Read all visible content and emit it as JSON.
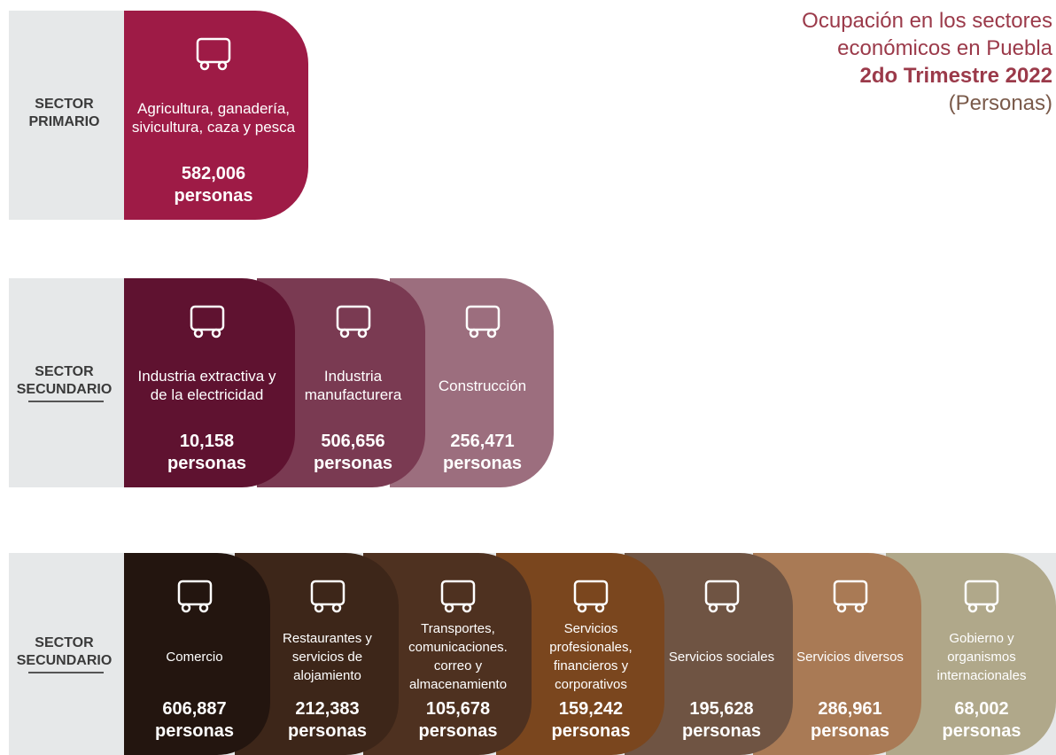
{
  "title": {
    "lines": [
      "Ocupación en los sectores",
      "económicos en Puebla",
      "2do Trimestre 2022",
      "(Personas)"
    ]
  },
  "sectors": [
    {
      "label": "SECTOR PRIMARIO",
      "items": [
        {
          "name": "Agricultura, ganadería, sivicultura, caza y pesca",
          "value": "582,006",
          "unit": "personas"
        }
      ]
    },
    {
      "label": "SECTOR SECUNDARIO",
      "items": [
        {
          "name": "Industria extractiva y de la electricidad",
          "value": "10,158",
          "unit": "personas"
        },
        {
          "name": "Industria manufacturera",
          "value": "506,656",
          "unit": "personas"
        },
        {
          "name": "Construcción",
          "value": "256,471",
          "unit": "personas"
        }
      ]
    },
    {
      "label": "SECTOR SECUNDARIO",
      "items": [
        {
          "name": "Comercio",
          "value": "606,887",
          "unit": "personas"
        },
        {
          "name": "Restaurantes y servicios de alojamiento",
          "value": "212,383",
          "unit": "personas"
        },
        {
          "name": "Transportes, comunicaciones. correo y almacenamiento",
          "value": "105,678",
          "unit": "personas"
        },
        {
          "name": "Servicios profesionales, financieros y corporativos",
          "value": "159,242",
          "unit": "personas"
        },
        {
          "name": "Servicios sociales",
          "value": "195,628",
          "unit": "personas"
        },
        {
          "name": "Servicios diversos",
          "value": "286,961",
          "unit": "personas"
        },
        {
          "name": "Gobierno y organismos internacionales",
          "value": "68,002",
          "unit": "personas"
        }
      ]
    }
  ]
}
